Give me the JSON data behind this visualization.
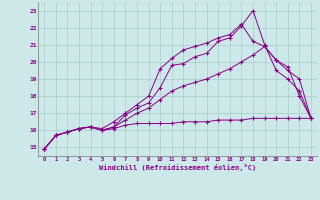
{
  "background_color": "#cce8e8",
  "grid_color": "#aacccc",
  "line_color": "#880088",
  "marker": "+",
  "xlabel": "Windchill (Refroidissement éolien,°C)",
  "xlabel_color": "#880088",
  "ylabel_ticks": [
    15,
    16,
    17,
    18,
    19,
    20,
    21,
    22,
    23
  ],
  "xtick_labels": [
    "0",
    "1",
    "2",
    "3",
    "4",
    "5",
    "6",
    "7",
    "8",
    "9",
    "10",
    "11",
    "12",
    "13",
    "14",
    "15",
    "16",
    "17",
    "18",
    "19",
    "20",
    "21",
    "22",
    "23"
  ],
  "xlim": [
    -0.5,
    23.5
  ],
  "ylim": [
    14.5,
    23.5
  ],
  "series": [
    {
      "x": [
        0,
        1,
        2,
        3,
        4,
        5,
        6,
        7,
        8,
        9,
        10,
        11,
        12,
        13,
        14,
        15,
        16,
        17,
        18,
        19,
        20,
        21,
        22,
        23
      ],
      "y": [
        14.9,
        15.7,
        15.9,
        16.1,
        16.2,
        16.0,
        16.2,
        16.9,
        17.3,
        17.6,
        18.5,
        19.8,
        19.9,
        20.3,
        20.5,
        21.2,
        21.4,
        22.1,
        23.0,
        21.0,
        19.5,
        19.0,
        18.3,
        16.7
      ]
    },
    {
      "x": [
        0,
        1,
        2,
        3,
        4,
        5,
        6,
        7,
        8,
        9,
        10,
        11,
        12,
        13,
        14,
        15,
        16,
        17,
        18,
        19,
        20,
        21,
        22,
        23
      ],
      "y": [
        14.9,
        15.7,
        15.9,
        16.1,
        16.2,
        16.1,
        16.5,
        17.0,
        17.5,
        18.0,
        19.6,
        20.2,
        20.7,
        20.9,
        21.1,
        21.4,
        21.6,
        22.2,
        21.2,
        20.9,
        20.1,
        19.7,
        18.0,
        16.7
      ]
    },
    {
      "x": [
        0,
        1,
        2,
        3,
        4,
        5,
        6,
        7,
        8,
        9,
        10,
        11,
        12,
        13,
        14,
        15,
        16,
        17,
        18,
        19,
        20,
        21,
        22,
        23
      ],
      "y": [
        14.9,
        15.7,
        15.9,
        16.1,
        16.2,
        16.0,
        16.2,
        16.6,
        17.0,
        17.3,
        17.8,
        18.3,
        18.6,
        18.8,
        19.0,
        19.3,
        19.6,
        20.0,
        20.4,
        20.9,
        20.1,
        19.5,
        19.0,
        16.7
      ]
    },
    {
      "x": [
        0,
        1,
        2,
        3,
        4,
        5,
        6,
        7,
        8,
        9,
        10,
        11,
        12,
        13,
        14,
        15,
        16,
        17,
        18,
        19,
        20,
        21,
        22,
        23
      ],
      "y": [
        14.9,
        15.7,
        15.9,
        16.1,
        16.2,
        16.0,
        16.1,
        16.3,
        16.4,
        16.4,
        16.4,
        16.4,
        16.5,
        16.5,
        16.5,
        16.6,
        16.6,
        16.6,
        16.7,
        16.7,
        16.7,
        16.7,
        16.7,
        16.7
      ]
    }
  ]
}
